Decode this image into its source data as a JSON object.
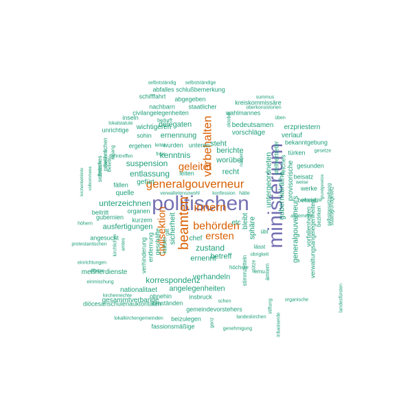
{
  "colors": {
    "tier1": "#7570b3",
    "tier2": "#d95f02",
    "tier3": "#1b9e77",
    "background": "#ffffff"
  },
  "words": [
    {
      "text": "politischen",
      "tier": 1
    },
    {
      "text": "ministerium",
      "tier": 1
    },
    {
      "text": "generalgouverneur",
      "tier": 2
    },
    {
      "text": "beamten",
      "tier": 2
    },
    {
      "text": "vorbehalten",
      "tier": 2
    },
    {
      "text": "innern",
      "tier": 2
    },
    {
      "text": "behörden",
      "tier": 2
    },
    {
      "text": "geleitet",
      "tier": 2
    },
    {
      "text": "ersten",
      "tier": 2
    },
    {
      "text": "civilsektion",
      "tier": 2
    },
    {
      "text": "gubernialräthe",
      "tier": 3
    },
    {
      "text": "kenntnis",
      "tier": 3
    },
    {
      "text": "delegaten",
      "tier": 3
    },
    {
      "text": "ernennung",
      "tier": 3
    },
    {
      "text": "berichte",
      "tier": 3
    },
    {
      "text": "steht",
      "tier": 3
    },
    {
      "text": "worüber",
      "tier": 3
    },
    {
      "text": "suspension",
      "tier": 3
    },
    {
      "text": "entlassung",
      "tier": 3
    },
    {
      "text": "recht",
      "tier": 3
    },
    {
      "text": "unterzeichnen",
      "tier": 3
    },
    {
      "text": "ausfertigungen",
      "tier": 3
    },
    {
      "text": "zustand",
      "tier": 3
    },
    {
      "text": "betreff",
      "tier": 3
    },
    {
      "text": "ernennt",
      "tier": 3
    },
    {
      "text": "korrespondenz",
      "tier": 3
    },
    {
      "text": "angelegenheiten",
      "tier": 3
    },
    {
      "text": "verhandeln",
      "tier": 3
    },
    {
      "text": "sphäre",
      "tier": 3
    },
    {
      "text": "generalgouverneurs",
      "tier": 3
    },
    {
      "text": "untergeordneten",
      "tier": 3
    },
    {
      "text": "provisorische",
      "tier": 3
    },
    {
      "text": "sicherheit",
      "tier": 3
    },
    {
      "text": "gefürt",
      "tier": 3
    },
    {
      "text": "quelle",
      "tier": 3
    },
    {
      "text": "bleibt",
      "tier": 3
    },
    {
      "text": "etc",
      "tier": 3
    },
    {
      "text": "chef",
      "tier": 3
    },
    {
      "text": "bedeutsamen",
      "tier": 3
    },
    {
      "text": "vorschläge",
      "tier": 3
    },
    {
      "text": "verlauf",
      "tier": 3
    },
    {
      "text": "erzpriestern",
      "tier": 3
    },
    {
      "text": "bekanntgebung",
      "tier": 3
    },
    {
      "text": "türken",
      "tier": 3
    },
    {
      "text": "gesunden",
      "tier": 3
    },
    {
      "text": "beisatz",
      "tier": 3
    },
    {
      "text": "werke",
      "tier": 3
    },
    {
      "text": "reiches",
      "tier": 3
    },
    {
      "text": "stellvertreter",
      "tier": 3
    },
    {
      "text": "befand",
      "tier": 3
    },
    {
      "text": "vorfallenheiten",
      "tier": 3
    },
    {
      "text": "verwaltungsangelegenheiten",
      "tier": 3
    },
    {
      "text": "bezirken",
      "tier": 3
    },
    {
      "text": "nationalitaet",
      "tier": 3
    },
    {
      "text": "insbruck",
      "tier": 3
    },
    {
      "text": "gesammtverbande",
      "tier": 3
    },
    {
      "text": "umständen",
      "tier": 3
    },
    {
      "text": "gemeindevorstehers",
      "tier": 3
    },
    {
      "text": "diöcesanschulenauktoritäten",
      "tier": 3
    },
    {
      "text": "ohnehin",
      "tier": 3
    },
    {
      "text": "beizulegen",
      "tier": 3
    },
    {
      "text": "fassionsmäßige",
      "tier": 3
    },
    {
      "text": "meßnerdienste",
      "tier": 3
    },
    {
      "text": "angesucht",
      "tier": 3
    },
    {
      "text": "gubernien",
      "tier": 3
    },
    {
      "text": "kurzem",
      "tier": 3
    },
    {
      "text": "beitritt",
      "tier": 3
    },
    {
      "text": "organen",
      "tier": 3
    },
    {
      "text": "fällen",
      "tier": 3
    },
    {
      "text": "leiten",
      "tier": 3
    },
    {
      "text": "wichtigeren",
      "tier": 3
    },
    {
      "text": "sohin",
      "tier": 3
    },
    {
      "text": "ergehen",
      "tier": 3
    },
    {
      "text": "wurden",
      "tier": 3
    },
    {
      "text": "unteren",
      "tier": 3
    },
    {
      "text": "civilangelegenheiten",
      "tier": 3
    },
    {
      "text": "wahlmannes",
      "tier": 3
    },
    {
      "text": "staatlicher",
      "tier": 3
    },
    {
      "text": "nachbarn",
      "tier": 3
    },
    {
      "text": "inseln",
      "tier": 3
    },
    {
      "text": "unrichtige",
      "tier": 3
    },
    {
      "text": "abgegeben",
      "tier": 3
    },
    {
      "text": "schlußbemerkung",
      "tier": 3
    },
    {
      "text": "abfalles",
      "tier": 3
    },
    {
      "text": "schifffahrt",
      "tier": 3
    },
    {
      "text": "kreiskommissäre",
      "tier": 3
    },
    {
      "text": "verhinderung",
      "tier": 3
    },
    {
      "text": "entfernung",
      "tier": 3
    },
    {
      "text": "geschäfte",
      "tier": 3
    },
    {
      "text": "kaiser",
      "tier": 3
    },
    {
      "text": "gilt",
      "tier": 3
    },
    {
      "text": "lässt",
      "tier": 3
    },
    {
      "text": "übt",
      "tier": 3
    },
    {
      "text": "höchste",
      "tier": 3
    },
    {
      "text": "stimmzetteln",
      "tier": 3
    },
    {
      "text": "ämtern",
      "tier": 3
    },
    {
      "text": "emu",
      "tier": 3
    },
    {
      "text": "stütze",
      "tier": 3
    },
    {
      "text": "obrigkeit",
      "tier": 3
    },
    {
      "text": "zweckes",
      "tier": 3
    },
    {
      "text": "selbstständig",
      "tier": 3
    },
    {
      "text": "selbstständige",
      "tier": 3
    },
    {
      "text": "summus",
      "tier": 3
    },
    {
      "text": "oberkonsistorien",
      "tier": 3
    },
    {
      "text": "oktober",
      "tier": 3
    },
    {
      "text": "üben",
      "tier": 3
    },
    {
      "text": "bedurft",
      "tier": 3
    },
    {
      "text": "lokalstatute",
      "tier": 3
    },
    {
      "text": "gesetze",
      "tier": 3
    },
    {
      "text": "weise",
      "tier": 3
    },
    {
      "text": "diesem",
      "tier": 3
    },
    {
      "text": "selbstgesetzgebung",
      "tier": 3
    },
    {
      "text": "staatsgrundgesetz",
      "tier": 3
    },
    {
      "text": "allgemeine",
      "tier": 3
    },
    {
      "text": "vereinigte",
      "tier": 3
    },
    {
      "text": "grundgesetze",
      "tier": 3
    },
    {
      "text": "darintreffen",
      "tier": 3
    },
    {
      "text": "gewöhnlichen",
      "tier": 3
    },
    {
      "text": "selbdem",
      "tier": 3
    },
    {
      "text": "vollkommene",
      "tier": 3
    },
    {
      "text": "kirchenbehörde",
      "tier": 3
    },
    {
      "text": "ingang",
      "tier": 3
    },
    {
      "text": "beliebt",
      "tier": 3
    },
    {
      "text": "verwaltetensowohl",
      "tier": 3
    },
    {
      "text": "konfession",
      "tier": 3
    },
    {
      "text": "hätte",
      "tier": 3
    },
    {
      "text": "höhern",
      "tier": 3
    },
    {
      "text": "protestantischen",
      "tier": 3
    },
    {
      "text": "arbiter",
      "tier": 3
    },
    {
      "text": "einmischung",
      "tier": 3
    },
    {
      "text": "einrichtungen",
      "tier": 3
    },
    {
      "text": "kirchenrechte",
      "tier": 3
    },
    {
      "text": "lokalkirchengemeinden",
      "tier": 3
    },
    {
      "text": "kirchlichen",
      "tier": 3
    },
    {
      "text": "amtes",
      "tier": 3
    },
    {
      "text": "schen",
      "tier": 3
    },
    {
      "text": "landeskirchen",
      "tier": 3
    },
    {
      "text": "genehmigung",
      "tier": 3
    },
    {
      "text": "stiftung",
      "tier": 3
    },
    {
      "text": "ganz",
      "tier": 3
    },
    {
      "text": "organische",
      "tier": 3
    },
    {
      "text": "landesfürsten",
      "tier": 3
    },
    {
      "text": "inbasiserde",
      "tier": 3
    },
    {
      "text": "freie",
      "tier": 3
    },
    {
      "text": "leitet",
      "tier": 3
    },
    {
      "text": "namen",
      "tier": 3
    }
  ]
}
